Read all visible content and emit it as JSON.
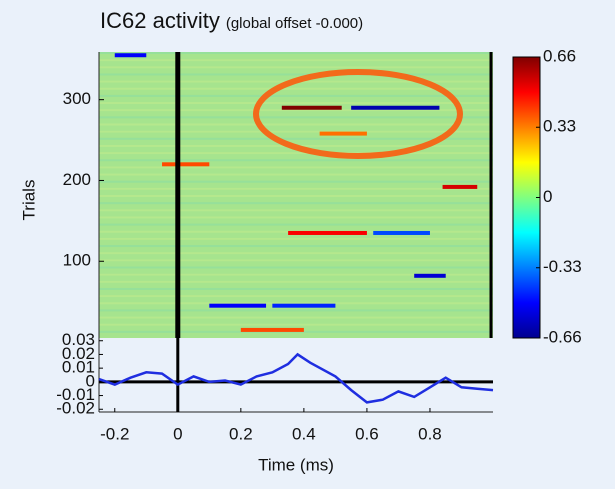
{
  "chart_data": [
    {
      "type": "heatmap",
      "title": "IC62 activity",
      "subtitle": "(global offset -0.000)",
      "ylabel": "Trials",
      "xlim": [
        -0.25,
        1.0
      ],
      "ylim": [
        5,
        359
      ],
      "yticks": [
        100,
        200,
        300
      ],
      "clim": [
        -0.66,
        0.66
      ],
      "cticks": [
        0.66,
        0.33,
        0,
        -0.33,
        -0.66
      ],
      "streaks": [
        {
          "trial": 290,
          "x": [
            0.33,
            0.52
          ],
          "value": 0.66
        },
        {
          "trial": 290,
          "x": [
            0.55,
            0.83
          ],
          "value": -0.6
        },
        {
          "trial": 192,
          "x": [
            0.84,
            0.95
          ],
          "value": 0.55
        },
        {
          "trial": 135,
          "x": [
            0.35,
            0.6
          ],
          "value": 0.5
        },
        {
          "trial": 135,
          "x": [
            0.62,
            0.8
          ],
          "value": -0.4
        },
        {
          "trial": 45,
          "x": [
            0.1,
            0.28
          ],
          "value": -0.5
        },
        {
          "trial": 45,
          "x": [
            0.3,
            0.5
          ],
          "value": -0.45
        },
        {
          "trial": 82,
          "x": [
            0.75,
            0.85
          ],
          "value": -0.55
        },
        {
          "trial": 220,
          "x": [
            -0.05,
            0.1
          ],
          "value": 0.4
        },
        {
          "trial": 258,
          "x": [
            0.45,
            0.6
          ],
          "value": 0.35
        },
        {
          "trial": 355,
          "x": [
            -0.2,
            -0.1
          ],
          "value": -0.5
        },
        {
          "trial": 15,
          "x": [
            0.2,
            0.4
          ],
          "value": 0.4
        }
      ]
    },
    {
      "type": "line",
      "xlabel": "Time (ms)",
      "x": [
        -0.25,
        -0.2,
        -0.15,
        -0.1,
        -0.05,
        0,
        0.05,
        0.1,
        0.15,
        0.2,
        0.25,
        0.3,
        0.35,
        0.38,
        0.42,
        0.5,
        0.55,
        0.6,
        0.65,
        0.7,
        0.75,
        0.8,
        0.85,
        0.9,
        0.95,
        1.0
      ],
      "values": [
        0.002,
        -0.002,
        0.003,
        0.007,
        0.006,
        -0.002,
        0.004,
        0.0,
        0.001,
        -0.002,
        0.004,
        0.007,
        0.013,
        0.02,
        0.014,
        0.004,
        -0.006,
        -0.015,
        -0.013,
        -0.007,
        -0.011,
        -0.004,
        0.003,
        -0.004,
        -0.005,
        -0.006
      ],
      "color": "#1f2ee0",
      "xlim": [
        -0.25,
        1.0
      ],
      "ylim": [
        -0.022,
        0.032
      ],
      "xticks": [
        -0.2,
        0,
        0.2,
        0.4,
        0.6,
        0.8
      ],
      "yticks": [
        0.03,
        0.02,
        0.01,
        0,
        -0.01,
        -0.02
      ]
    }
  ]
}
